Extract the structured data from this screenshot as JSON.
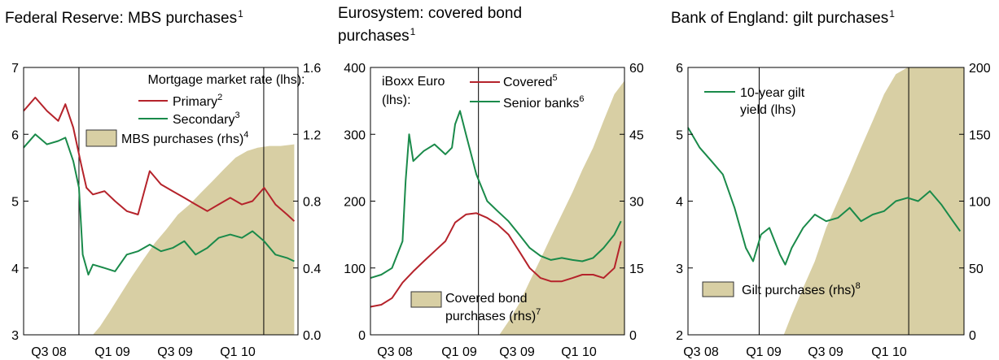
{
  "chart_data": [
    {
      "type": "line",
      "title": "Federal Reserve: MBS purchases",
      "title_note": "1",
      "x_tick_labels": [
        "Q3 08",
        "Q1 09",
        "Q3 09",
        "Q1 10"
      ],
      "x_range": [
        "2008-07-01",
        "2010-06-30"
      ],
      "vlines": [
        "2008-11-25",
        "2010-03-31"
      ],
      "left_axis": {
        "min": 3,
        "max": 7,
        "step": 1,
        "ticks": [
          "3",
          "4",
          "5",
          "6",
          "7"
        ]
      },
      "right_axis": {
        "min": 0,
        "max": 1.6,
        "step": 0.4,
        "ticks": [
          "0.0",
          "0.4",
          "0.8",
          "1.2",
          "1.6"
        ]
      },
      "legend_heading": "Mortgage market rate (lhs):",
      "series": [
        {
          "name": "Primary",
          "note": "2",
          "kind": "line",
          "axis": "left",
          "color": "#b5232b",
          "x": [
            "2008-07-01",
            "2008-08-01",
            "2008-09-01",
            "2008-10-01",
            "2008-10-20",
            "2008-11-10",
            "2008-12-01",
            "2008-12-15",
            "2009-01-01",
            "2009-02-01",
            "2009-03-01",
            "2009-04-01",
            "2009-05-01",
            "2009-06-01",
            "2009-07-01",
            "2009-08-01",
            "2009-09-01",
            "2009-10-01",
            "2009-11-01",
            "2009-12-01",
            "2010-01-01",
            "2010-02-01",
            "2010-03-01",
            "2010-04-01",
            "2010-05-01",
            "2010-06-01",
            "2010-06-20"
          ],
          "y": [
            6.35,
            6.55,
            6.35,
            6.2,
            6.45,
            6.1,
            5.55,
            5.2,
            5.1,
            5.15,
            5.0,
            4.85,
            4.8,
            5.45,
            5.25,
            5.15,
            5.05,
            4.95,
            4.85,
            4.95,
            5.05,
            4.95,
            5.0,
            5.2,
            4.95,
            4.8,
            4.7
          ]
        },
        {
          "name": "Secondary",
          "note": "3",
          "kind": "line",
          "axis": "left",
          "color": "#1a8a4a",
          "x": [
            "2008-07-01",
            "2008-08-01",
            "2008-09-01",
            "2008-10-01",
            "2008-10-20",
            "2008-11-10",
            "2008-11-25",
            "2008-12-05",
            "2008-12-20",
            "2009-01-01",
            "2009-02-01",
            "2009-03-01",
            "2009-04-01",
            "2009-05-01",
            "2009-06-01",
            "2009-07-01",
            "2009-08-01",
            "2009-09-01",
            "2009-10-01",
            "2009-11-01",
            "2009-12-01",
            "2010-01-01",
            "2010-02-01",
            "2010-03-01",
            "2010-04-01",
            "2010-05-01",
            "2010-06-01",
            "2010-06-20"
          ],
          "y": [
            5.8,
            6.0,
            5.85,
            5.9,
            5.95,
            5.6,
            5.2,
            4.2,
            3.9,
            4.05,
            4.0,
            3.95,
            4.2,
            4.25,
            4.35,
            4.25,
            4.3,
            4.4,
            4.2,
            4.3,
            4.45,
            4.5,
            4.45,
            4.55,
            4.4,
            4.2,
            4.15,
            4.1
          ]
        },
        {
          "name": "MBS purchases (rhs)",
          "note": "4",
          "kind": "area",
          "axis": "right",
          "color": "#d8cfa4",
          "x": [
            "2009-01-01",
            "2009-01-20",
            "2009-02-15",
            "2009-03-15",
            "2009-04-15",
            "2009-05-15",
            "2009-06-15",
            "2009-07-15",
            "2009-08-15",
            "2009-09-15",
            "2009-10-15",
            "2009-11-15",
            "2009-12-15",
            "2010-01-15",
            "2010-02-15",
            "2010-03-15",
            "2010-04-15",
            "2010-05-15",
            "2010-06-20"
          ],
          "y": [
            0.0,
            0.05,
            0.14,
            0.24,
            0.35,
            0.45,
            0.55,
            0.63,
            0.72,
            0.78,
            0.85,
            0.92,
            0.99,
            1.06,
            1.1,
            1.12,
            1.13,
            1.13,
            1.14
          ]
        }
      ]
    },
    {
      "type": "line",
      "title": "Eurosystem: covered bond purchases",
      "title_note": "1",
      "x_tick_labels": [
        "Q3 08",
        "Q1 09",
        "Q3 09",
        "Q1 10"
      ],
      "x_range": [
        "2008-07-01",
        "2010-06-30"
      ],
      "vlines": [
        "2009-05-07"
      ],
      "left_axis": {
        "min": 0,
        "max": 400,
        "step": 100,
        "ticks": [
          "0",
          "100",
          "200",
          "300",
          "400"
        ]
      },
      "right_axis": {
        "min": 0,
        "max": 60,
        "step": 15,
        "ticks": [
          "0",
          "15",
          "30",
          "45",
          "60"
        ]
      },
      "legend_heading": "iBoxx Euro (lhs):",
      "series": [
        {
          "name": "Covered",
          "note": "5",
          "kind": "line",
          "axis": "left",
          "color": "#b5232b",
          "x": [
            "2008-07-01",
            "2008-08-01",
            "2008-09-01",
            "2008-10-01",
            "2008-11-01",
            "2008-12-01",
            "2009-01-01",
            "2009-02-01",
            "2009-03-01",
            "2009-04-01",
            "2009-05-01",
            "2009-06-01",
            "2009-07-01",
            "2009-08-01",
            "2009-09-01",
            "2009-10-01",
            "2009-11-01",
            "2009-12-01",
            "2010-01-01",
            "2010-02-01",
            "2010-03-01",
            "2010-04-01",
            "2010-05-01",
            "2010-06-01",
            "2010-06-20"
          ],
          "y": [
            42,
            45,
            55,
            78,
            95,
            110,
            125,
            140,
            168,
            180,
            182,
            175,
            165,
            150,
            125,
            100,
            85,
            80,
            80,
            85,
            90,
            90,
            85,
            100,
            140
          ]
        },
        {
          "name": "Senior banks",
          "note": "6",
          "kind": "line",
          "axis": "left",
          "color": "#1a8a4a",
          "x": [
            "2008-07-01",
            "2008-08-01",
            "2008-09-01",
            "2008-10-01",
            "2008-10-10",
            "2008-10-20",
            "2008-11-01",
            "2008-12-01",
            "2009-01-01",
            "2009-02-01",
            "2009-02-20",
            "2009-03-01",
            "2009-03-15",
            "2009-04-01",
            "2009-05-01",
            "2009-06-01",
            "2009-07-01",
            "2009-08-01",
            "2009-09-01",
            "2009-10-01",
            "2009-11-01",
            "2009-12-01",
            "2010-01-01",
            "2010-02-01",
            "2010-03-01",
            "2010-04-01",
            "2010-05-01",
            "2010-06-01",
            "2010-06-20"
          ],
          "y": [
            85,
            90,
            100,
            140,
            230,
            300,
            260,
            275,
            285,
            270,
            280,
            315,
            335,
            300,
            240,
            200,
            185,
            170,
            150,
            130,
            118,
            112,
            115,
            112,
            110,
            115,
            130,
            150,
            170
          ]
        },
        {
          "name": "Covered bond purchases (rhs)",
          "note": "7",
          "kind": "area",
          "axis": "right",
          "color": "#d8cfa4",
          "x": [
            "2009-07-06",
            "2009-08-01",
            "2009-09-01",
            "2009-10-01",
            "2009-11-01",
            "2009-12-01",
            "2010-01-01",
            "2010-02-01",
            "2010-03-01",
            "2010-04-01",
            "2010-05-01",
            "2010-06-01",
            "2010-06-30"
          ],
          "y": [
            0,
            3,
            7,
            12,
            17,
            22,
            27,
            32,
            37,
            42,
            48,
            54,
            57
          ]
        }
      ]
    },
    {
      "type": "line",
      "title": "Bank of England: gilt purchases",
      "title_note": "1",
      "x_tick_labels": [
        "Q3 08",
        "Q1 09",
        "Q3 09",
        "Q1 10"
      ],
      "x_range": [
        "2008-07-01",
        "2010-06-30"
      ],
      "vlines": [
        "2009-01-05",
        "2010-02-04"
      ],
      "left_axis": {
        "min": 2,
        "max": 6,
        "step": 1,
        "ticks": [
          "2",
          "3",
          "4",
          "5",
          "6"
        ]
      },
      "right_axis": {
        "min": 0,
        "max": 200,
        "step": 50,
        "ticks": [
          "0",
          "50",
          "100",
          "150",
          "200"
        ]
      },
      "legend_heading": "",
      "series": [
        {
          "name": "10-year gilt yield (lhs)",
          "note": "",
          "kind": "line",
          "axis": "left",
          "color": "#1a8a4a",
          "x": [
            "2008-07-01",
            "2008-08-01",
            "2008-09-01",
            "2008-10-01",
            "2008-11-01",
            "2008-12-01",
            "2008-12-20",
            "2009-01-10",
            "2009-02-01",
            "2009-03-01",
            "2009-03-15",
            "2009-04-01",
            "2009-05-01",
            "2009-06-01",
            "2009-07-01",
            "2009-08-01",
            "2009-09-01",
            "2009-10-01",
            "2009-11-01",
            "2009-12-01",
            "2010-01-01",
            "2010-02-01",
            "2010-03-01",
            "2010-04-01",
            "2010-05-01",
            "2010-06-01",
            "2010-06-20"
          ],
          "y": [
            5.1,
            4.8,
            4.6,
            4.4,
            3.9,
            3.3,
            3.1,
            3.5,
            3.6,
            3.2,
            3.05,
            3.3,
            3.6,
            3.8,
            3.7,
            3.75,
            3.9,
            3.7,
            3.8,
            3.85,
            4.0,
            4.05,
            4.0,
            4.15,
            3.95,
            3.7,
            3.55
          ]
        },
        {
          "name": "Gilt purchases (rhs)",
          "note": "8",
          "kind": "area",
          "axis": "right",
          "color": "#d8cfa4",
          "x": [
            "2009-03-11",
            "2009-04-01",
            "2009-05-01",
            "2009-06-01",
            "2009-07-01",
            "2009-08-01",
            "2009-09-01",
            "2009-10-01",
            "2009-11-01",
            "2009-12-01",
            "2010-01-01",
            "2010-02-01",
            "2010-06-30"
          ],
          "y": [
            0,
            15,
            35,
            55,
            80,
            100,
            120,
            140,
            160,
            180,
            195,
            200,
            200
          ]
        }
      ]
    }
  ]
}
